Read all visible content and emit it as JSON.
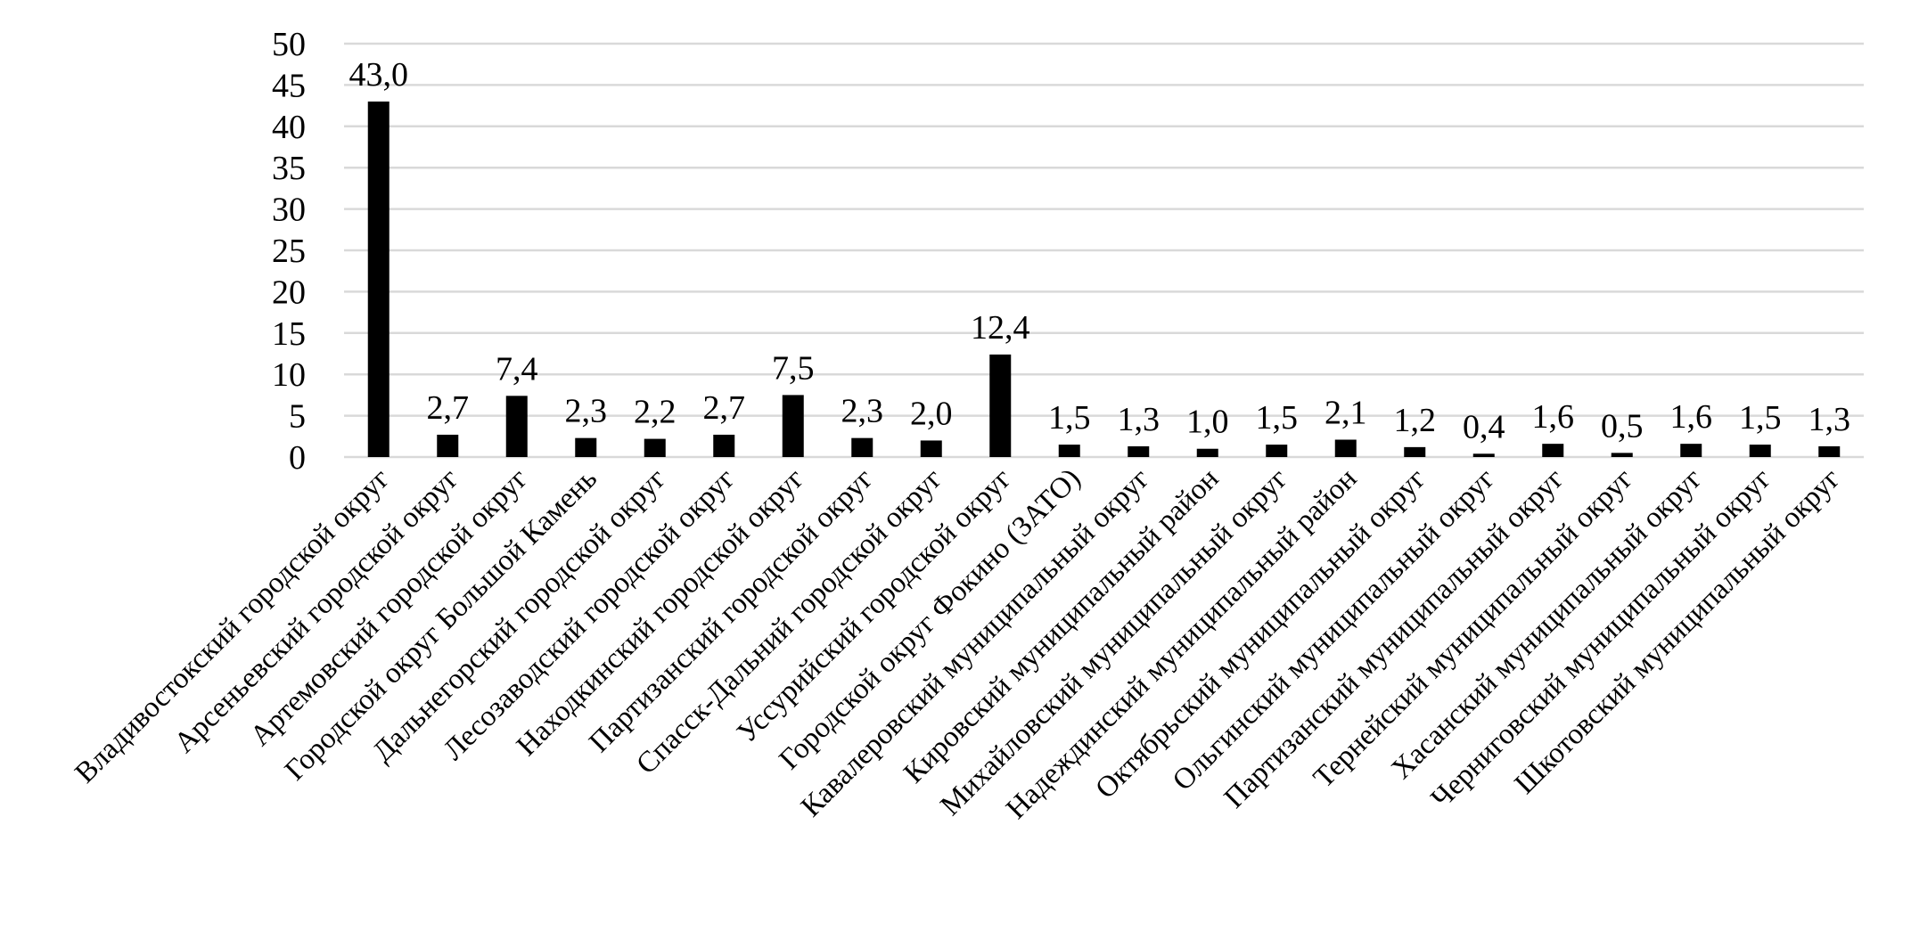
{
  "chart_data": {
    "type": "bar",
    "title": "",
    "xlabel": "",
    "ylabel": "",
    "ylim": [
      0,
      50
    ],
    "yticks": [
      "0",
      "5",
      "10",
      "15",
      "20",
      "25",
      "30",
      "35",
      "40",
      "45",
      "50"
    ],
    "grid": true,
    "legend": "none",
    "bar_color": "#000000",
    "grid_color": "#d9d9d9",
    "categories": [
      "Владивостокский городской округ",
      "Арсеньевский городской округ",
      "Артемовский городской округ",
      "Городской округ Большой Камень",
      "Дальнегорский городской округ",
      "Лесозаводский городской округ",
      "Находкинский городской округ",
      "Партизанский городской округ",
      "Спасск-Дальний городской округ",
      "Уссурийский городской округ",
      "Городской округ Фокино (ЗАТО)",
      "Кавалеровский муниципальный округ",
      "Кировский муниципальный район",
      "Михайловский муниципальный округ",
      "Надеждинский муниципальный район",
      "Октябрьский муниципальный округ",
      "Ольгинский муниципальный округ",
      "Партизанский муниципальный округ",
      "Тернейский муниципальный округ",
      "Хасанский муниципальный округ",
      "Черниговский муниципальный округ",
      "Шкотовский муниципальный округ"
    ],
    "values": [
      43.0,
      2.7,
      7.4,
      2.3,
      2.2,
      2.7,
      7.5,
      2.3,
      2.0,
      12.4,
      1.5,
      1.3,
      1.0,
      1.5,
      2.1,
      1.2,
      0.4,
      1.6,
      0.5,
      1.6,
      1.5,
      1.3
    ],
    "data_labels": [
      "43,0",
      "2,7",
      "7,4",
      "2,3",
      "2,2",
      "2,7",
      "7,5",
      "2,3",
      "2,0",
      "12,4",
      "1,5",
      "1,3",
      "1,0",
      "1,5",
      "2,1",
      "1,2",
      "0,4",
      "1,6",
      "0,5",
      "1,6",
      "1,5",
      "1,3"
    ]
  }
}
